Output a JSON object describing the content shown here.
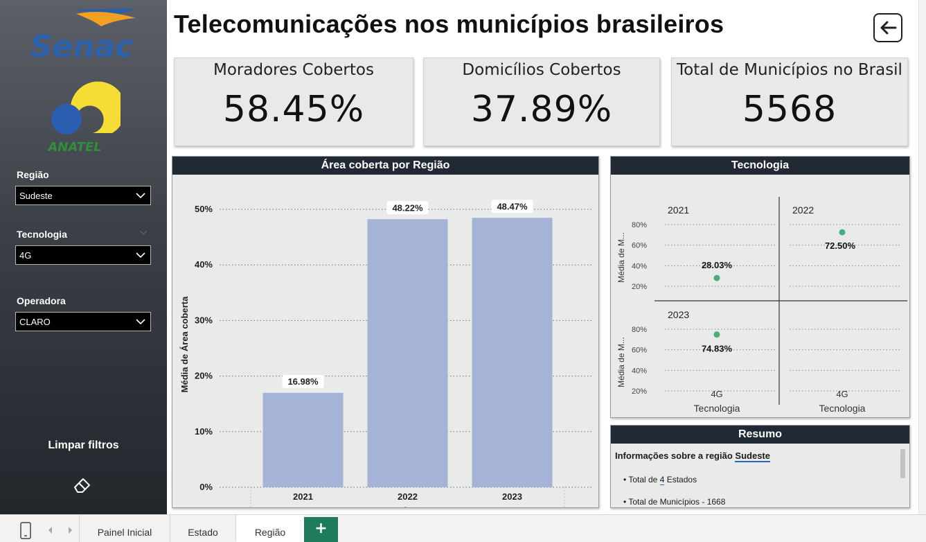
{
  "page": {
    "title": "Telecomunicações nos municípios brasileiros"
  },
  "sidebar": {
    "logos": {
      "senac": "Senac",
      "anatel": "ANATEL"
    },
    "filters": [
      {
        "label": "Região",
        "value": "Sudeste"
      },
      {
        "label": "Tecnologia",
        "value": "4G"
      },
      {
        "label": "Operadora",
        "value": "CLARO"
      }
    ],
    "clear_label": "Limpar filtros",
    "clear_icon": "eraser-icon"
  },
  "kpis": [
    {
      "label": "Moradores Cobertos",
      "value": "58.45%"
    },
    {
      "label": "Domicílios Cobertos",
      "value": "37.89%"
    },
    {
      "label": "Total de Municípios no Brasil",
      "value": "5568"
    }
  ],
  "bar_panel_title": "Área coberta por Região",
  "tech_panel_title": "Tecnologia",
  "chart_data": [
    {
      "type": "bar",
      "title": "Área coberta por Região",
      "xlabel": "Sudeste",
      "ylabel": "Média de Área coberta",
      "categories": [
        "2021",
        "2022",
        "2023"
      ],
      "values": [
        16.98,
        48.22,
        48.47
      ],
      "data_labels": [
        "16.98%",
        "48.22%",
        "48.47%"
      ],
      "yticks": [
        "0%",
        "10%",
        "20%",
        "30%",
        "40%",
        "50%"
      ],
      "ylim": [
        0,
        50
      ],
      "grid": true,
      "bar_color": "#a5b4d6"
    },
    {
      "type": "scatter",
      "title": "Tecnologia",
      "ylabel": "Média de M...",
      "xlabel": "Tecnologia",
      "x_category": "4G",
      "yticks": [
        "20%",
        "40%",
        "60%",
        "80%"
      ],
      "ylim": [
        0,
        90
      ],
      "point_color": "#4caf78",
      "panels": [
        {
          "year": "2021",
          "value": 28.03,
          "label": "28.03%"
        },
        {
          "year": "2022",
          "value": 72.5,
          "label": "72.50%"
        },
        {
          "year": "2023",
          "value": 74.83,
          "label": "74.83%"
        }
      ]
    }
  ],
  "resumo": {
    "title": "Resumo",
    "heading_prefix": "Informações sobre a região ",
    "heading_region": "Sudeste",
    "line1_prefix": "• Total de ",
    "line1_value": "4",
    "line1_suffix": " Estados",
    "line2": "• Total de Municípios - 1668"
  },
  "tabs": [
    {
      "label": "Painel Inicial",
      "active": false
    },
    {
      "label": "Estado",
      "active": false
    },
    {
      "label": "Região",
      "active": true
    }
  ],
  "tab_add_label": "+",
  "colors": {
    "sidebar_top": "#5d6068",
    "sidebar_bottom": "#23272c",
    "header_bar": "#212934",
    "accent_tab": "#1e7c5a"
  }
}
